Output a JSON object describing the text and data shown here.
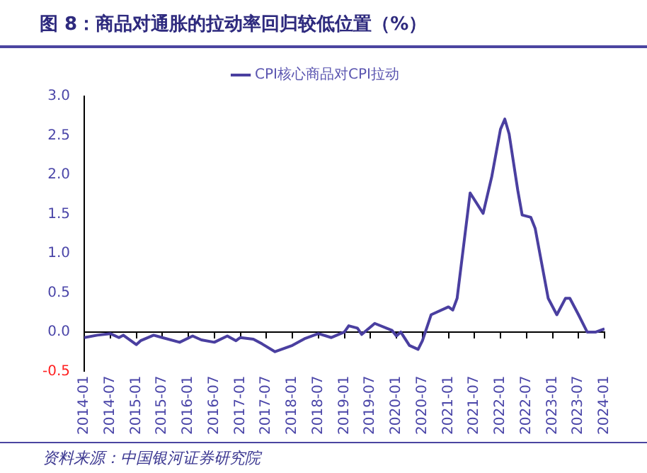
{
  "chart_data": {
    "type": "line",
    "title": "图 8：商品对通胀的拉动率回归较低位置（%）",
    "x": [
      "2014-01",
      "2014-04",
      "2014-07",
      "2014-09",
      "2014-10",
      "2015-01",
      "2015-02",
      "2015-05",
      "2015-07",
      "2015-11",
      "2016-02",
      "2016-04",
      "2016-07",
      "2016-10",
      "2016-12",
      "2017-01",
      "2017-04",
      "2017-06",
      "2017-09",
      "2018-01",
      "2018-04",
      "2018-07",
      "2018-10",
      "2019-01",
      "2019-02",
      "2019-04",
      "2019-05",
      "2019-08",
      "2019-12",
      "2020-01",
      "2020-02",
      "2020-04",
      "2020-06",
      "2020-07",
      "2020-09",
      "2021-01",
      "2021-02",
      "2021-03",
      "2021-06",
      "2021-09",
      "2021-11",
      "2022-01",
      "2022-02",
      "2022-03",
      "2022-05",
      "2022-06",
      "2022-08",
      "2022-09",
      "2022-12",
      "2023-02",
      "2023-04",
      "2023-05",
      "2023-07",
      "2023-09",
      "2023-11",
      "2024-01"
    ],
    "series": [
      {
        "name": "CPI核心商品对CPI拉动",
        "color": "#4a3fa0",
        "values": [
          -0.07,
          -0.04,
          -0.02,
          -0.07,
          -0.04,
          -0.16,
          -0.11,
          -0.04,
          -0.07,
          -0.13,
          -0.05,
          -0.1,
          -0.13,
          -0.05,
          -0.11,
          -0.07,
          -0.09,
          -0.15,
          -0.25,
          -0.17,
          -0.08,
          -0.02,
          -0.07,
          0,
          0.08,
          0.05,
          -0.03,
          0.11,
          0.02,
          -0.05,
          0,
          -0.17,
          -0.22,
          -0.11,
          0.22,
          0.32,
          0.28,
          0.43,
          1.77,
          1.51,
          1.98,
          2.58,
          2.71,
          2.52,
          1.8,
          1.49,
          1.46,
          1.32,
          0.43,
          0.22,
          0.43,
          0.43,
          0.22,
          0,
          0,
          0.04
        ]
      }
    ],
    "xlim": [
      "2014-01",
      "2024-01"
    ],
    "xticks": [
      "2014-01",
      "2014-07",
      "2015-01",
      "2015-07",
      "2016-01",
      "2016-07",
      "2017-01",
      "2017-07",
      "2018-01",
      "2018-07",
      "2019-01",
      "2019-07",
      "2020-01",
      "2020-07",
      "2021-01",
      "2021-07",
      "2022-01",
      "2022-07",
      "2023-01",
      "2023-07",
      "2024-01"
    ],
    "ylim": [
      -0.5,
      3.0
    ],
    "yticks": [
      {
        "value": -0.5,
        "label": "-0.5"
      },
      {
        "value": 0,
        "label": "0.0"
      },
      {
        "value": 0.5,
        "label": "0.5"
      },
      {
        "value": 1,
        "label": "1.0"
      },
      {
        "value": 1.5,
        "label": "1.5"
      },
      {
        "value": 2,
        "label": "2.0"
      },
      {
        "value": 2.5,
        "label": "2.5"
      },
      {
        "value": 3,
        "label": "3.0"
      }
    ],
    "grid": false,
    "ref_lines": [
      {
        "axis": "y",
        "value": 0,
        "color": "#000000"
      }
    ],
    "legend": "top",
    "marker": "none",
    "line_style": "solid",
    "annotations": [
      "资料来源：中国银河证券研究院"
    ]
  }
}
